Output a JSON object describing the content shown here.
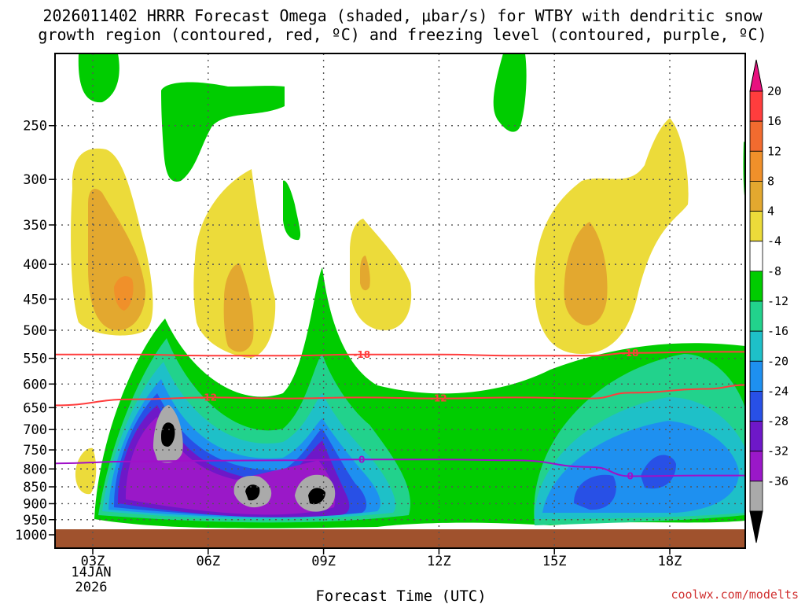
{
  "chart_data": {
    "type": "heatmap",
    "title_line1": "2026011402 HRRR Forecast Omega (shaded, μbar/s) for WTBY with dendritic snow",
    "title_line2": "growth region (contoured, red, ºC) and freezing level (contoured, purple, ºC)",
    "xlabel": "Forecast Time (UTC)",
    "ylabel": "",
    "x_ticks": [
      "03Z",
      "06Z",
      "09Z",
      "12Z",
      "15Z",
      "18Z"
    ],
    "x_tick_hours": [
      3,
      6,
      9,
      12,
      15,
      18
    ],
    "x_range_hours": [
      2,
      20
    ],
    "date_label": [
      "14JAN",
      "2026"
    ],
    "y_ticks": [
      250,
      300,
      350,
      400,
      450,
      500,
      550,
      600,
      650,
      700,
      750,
      800,
      850,
      900,
      950,
      1000
    ],
    "y_range_hpa": [
      200,
      1000
    ],
    "colorbar": {
      "labels": [
        "20",
        "16",
        "12",
        "8",
        "4",
        "-4",
        "-8",
        "-12",
        "-16",
        "-20",
        "-24",
        "-28",
        "-32",
        "-36"
      ],
      "colors": [
        "#ff3d3d",
        "#f26b2f",
        "#f0902a",
        "#e3a82f",
        "#ecdb3a",
        "#ffffff",
        "#00cc00",
        "#22d28c",
        "#1ec0c8",
        "#1e90f0",
        "#2850e6",
        "#6e18c8",
        "#9a18c8",
        "#aaaaaa"
      ],
      "top_arrow_color": "#e8117f",
      "bottom_arrow_color": "#000000"
    },
    "contours": [
      {
        "name": "dgz-upper",
        "label": "-18",
        "color": "#ff3c3c",
        "hpa": [
          543,
          543,
          545,
          545,
          543,
          543,
          545,
          545,
          540,
          538,
          538
        ]
      },
      {
        "name": "dgz-lower",
        "label": "-12",
        "color": "#ff3c3c",
        "hpa": [
          645,
          632,
          628,
          630,
          628,
          630,
          628,
          630,
          618,
          610,
          602
        ]
      },
      {
        "name": "freezing-level",
        "label": "0",
        "color": "#a010c8",
        "hpa": [
          785,
          780,
          778,
          777,
          775,
          775,
          777,
          795,
          820,
          818,
          818
        ]
      }
    ],
    "contour_hours": [
      2,
      4,
      6,
      8,
      10,
      12,
      14,
      16,
      17,
      19,
      20
    ]
  },
  "watermark": "coolwx.com/modelts"
}
